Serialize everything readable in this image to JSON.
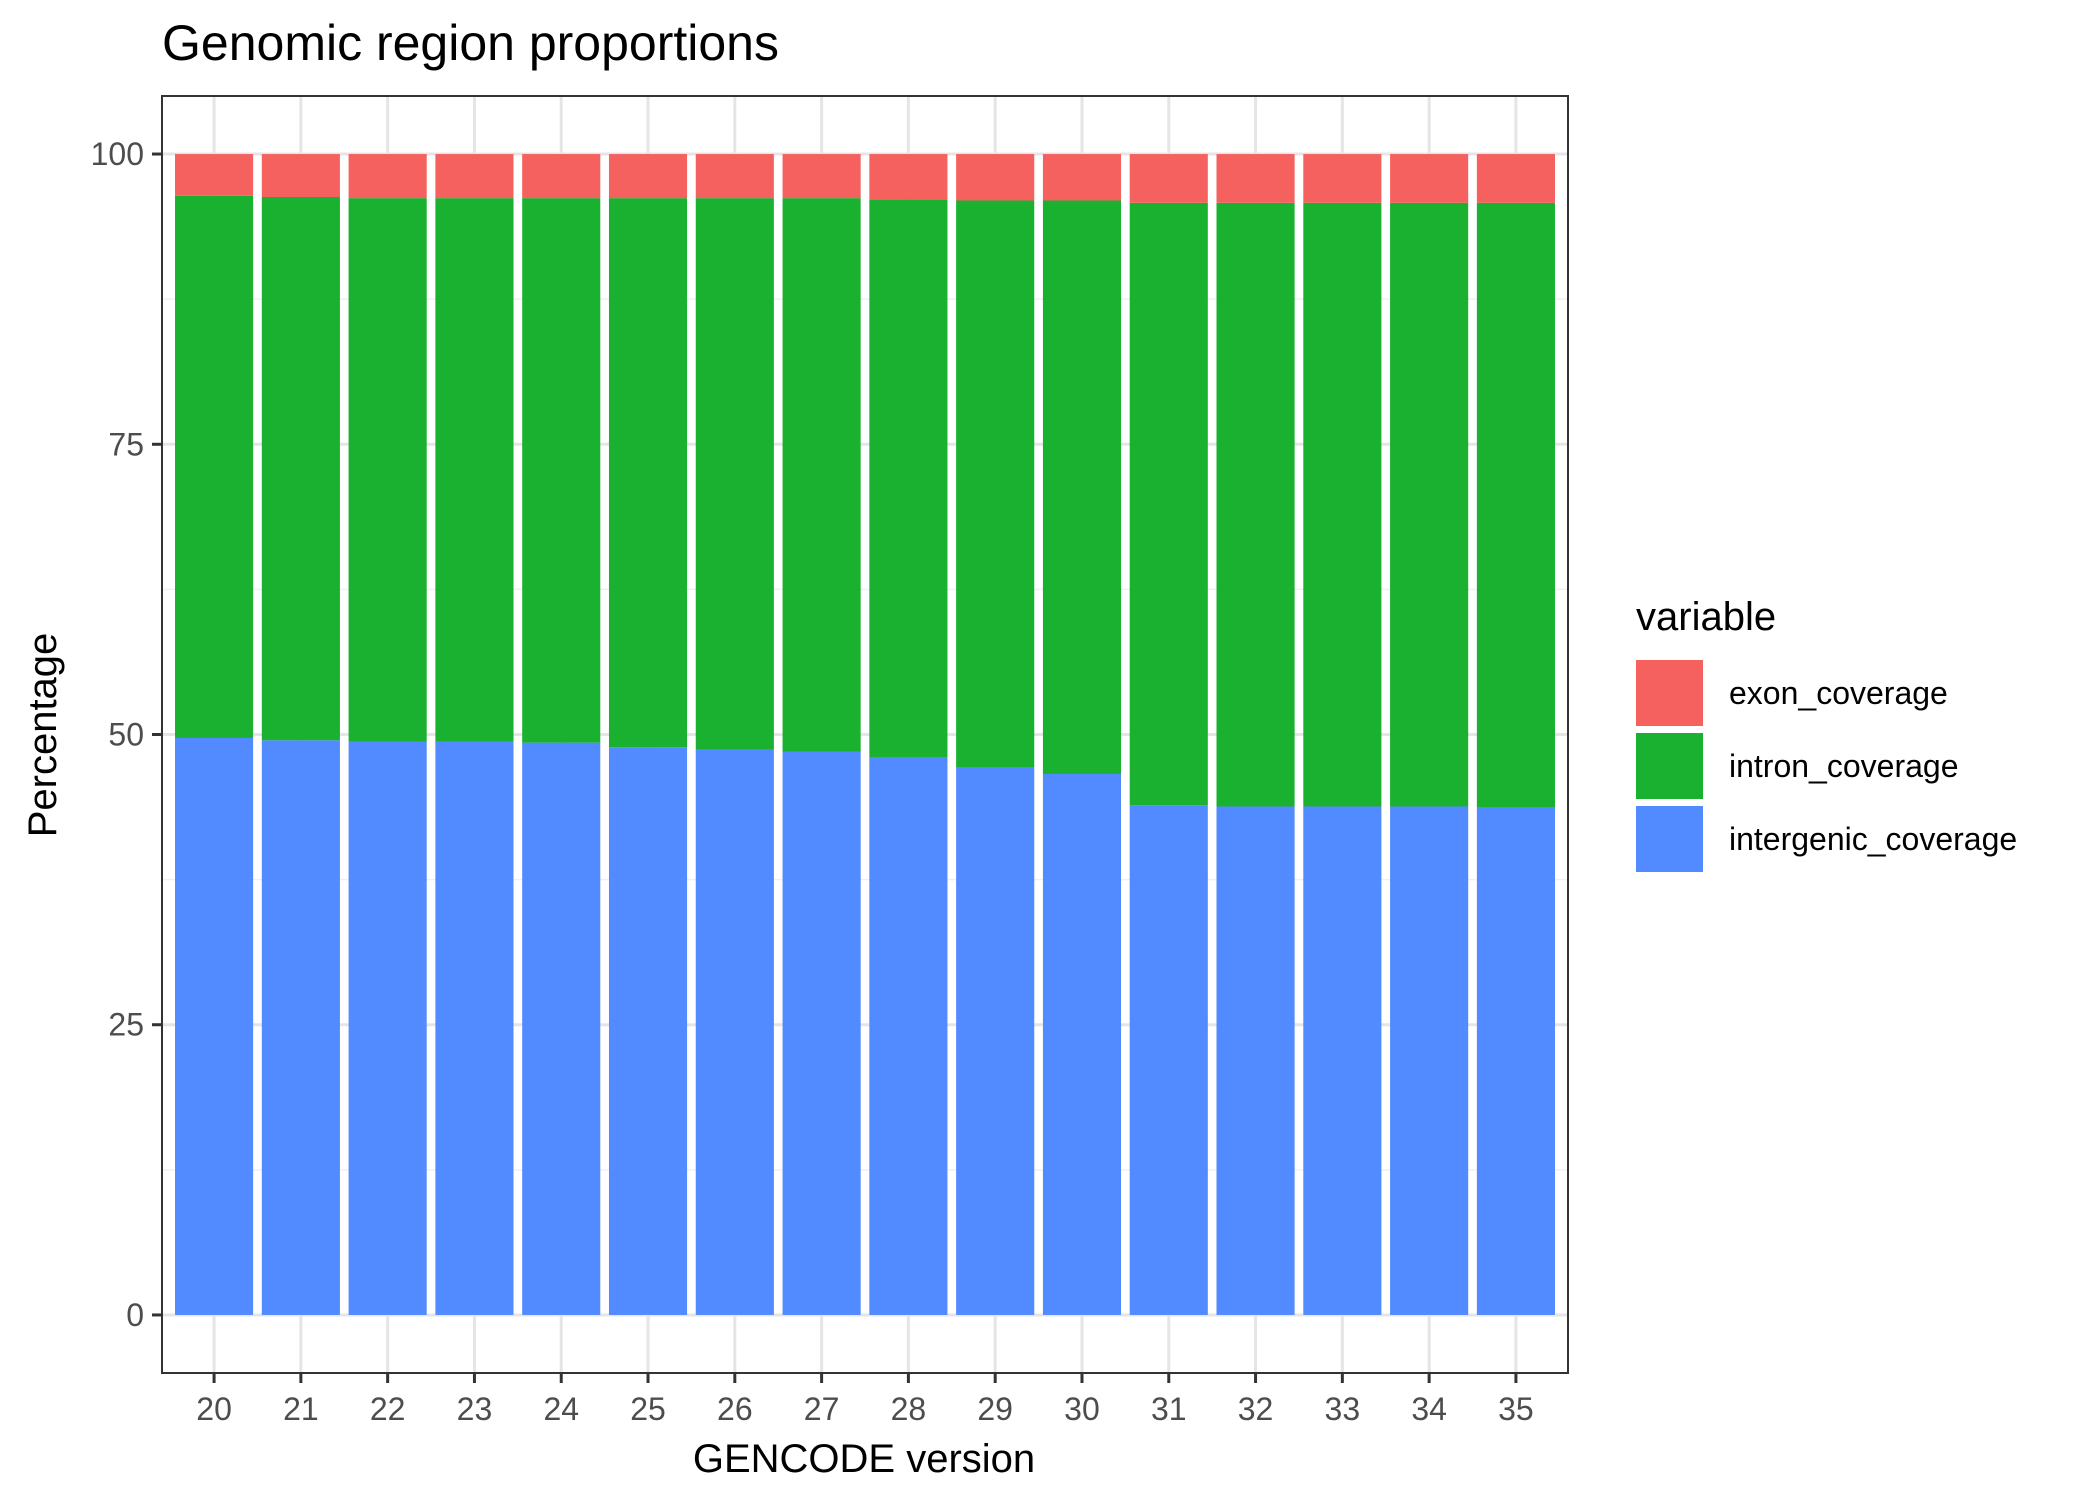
{
  "chart_data": {
    "type": "bar",
    "stacked": true,
    "title": "Genomic region proportions",
    "xlabel": "GENCODE version",
    "ylabel": "Percentage",
    "ylim": [
      -5,
      105
    ],
    "yticks": [
      0,
      25,
      50,
      75,
      100
    ],
    "grid": true,
    "legend_position": "right",
    "legend_title": "variable",
    "categories": [
      "20",
      "21",
      "22",
      "23",
      "24",
      "25",
      "26",
      "27",
      "28",
      "29",
      "30",
      "31",
      "32",
      "33",
      "34",
      "35"
    ],
    "series": [
      {
        "name": "intergenic_coverage",
        "color": "#528AFF",
        "values": [
          49.7,
          49.5,
          49.4,
          49.4,
          49.3,
          48.9,
          48.7,
          48.5,
          48.0,
          47.2,
          46.6,
          43.9,
          43.8,
          43.8,
          43.8,
          43.7
        ]
      },
      {
        "name": "intron_coverage",
        "color": "#19B12F",
        "values": [
          46.7,
          46.8,
          46.8,
          46.8,
          46.9,
          47.3,
          47.5,
          47.7,
          48.1,
          48.8,
          49.4,
          51.9,
          52.0,
          52.0,
          52.0,
          52.1
        ]
      },
      {
        "name": "exon_coverage",
        "color": "#F5615E",
        "values": [
          3.6,
          3.7,
          3.8,
          3.8,
          3.8,
          3.8,
          3.8,
          3.8,
          3.9,
          4.0,
          4.0,
          4.2,
          4.2,
          4.2,
          4.2,
          4.2
        ]
      }
    ],
    "legend_order": [
      "exon_coverage",
      "intron_coverage",
      "intergenic_coverage"
    ]
  }
}
